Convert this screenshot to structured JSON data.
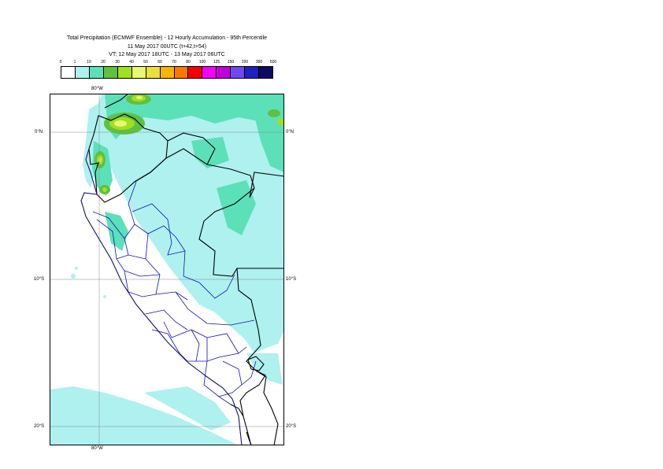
{
  "title": {
    "line1": "Total Precipitation (ECMWF Ensemble) - 12 Hourly Accumulation - 95th Percentile",
    "line2": "11 May 2017 00UTC (t+42,t+54)",
    "line3": "VT: 12 May 2017 18UTC - 13 May 2017 06UTC"
  },
  "legend": {
    "labels": [
      "0",
      "1",
      "10",
      "20",
      "30",
      "40",
      "50",
      "60",
      "70",
      "80",
      "100",
      "125",
      "150",
      "200",
      "300",
      "500"
    ],
    "colors": [
      "#ffffff",
      "#aef1ef",
      "#5ce0b8",
      "#60c040",
      "#a0e020",
      "#e8f870",
      "#e8e040",
      "#f8b400",
      "#f87800",
      "#f80000",
      "#f800f8",
      "#c000d8",
      "#7048f0",
      "#2020c0",
      "#0a0a60"
    ]
  },
  "axes": {
    "lon_top": "80°W",
    "lon_bottom": "80°W",
    "lat_0": "0°N",
    "lat_0_right": "0°N",
    "lat_10": "10°S",
    "lat_10_right": "10°S",
    "lat_20": "20°S",
    "lat_20_right": "20°S"
  },
  "colors": {
    "light_precip": "#aef1ef",
    "medium_precip": "#5ce0b8",
    "country_border": "#000000",
    "region_border": "#1010c0"
  }
}
